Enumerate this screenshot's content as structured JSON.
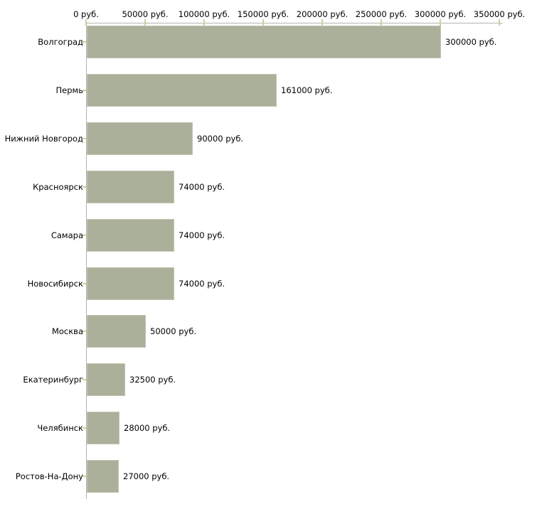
{
  "chart_data": {
    "type": "bar",
    "orientation": "horizontal",
    "title": "",
    "xlabel": "",
    "ylabel": "",
    "unit": "руб.",
    "xlim": [
      0,
      350000
    ],
    "grid": false,
    "legend": false,
    "categories": [
      "Волгоград",
      "Пермь",
      "Нижний Новгород",
      "Красноярск",
      "Самара",
      "Новосибирск",
      "Москва",
      "Екатеринбург",
      "Челябинск",
      "Ростов-На-Дону"
    ],
    "values": [
      300000,
      161000,
      90000,
      74000,
      74000,
      74000,
      50000,
      32500,
      28000,
      27000
    ],
    "value_labels": [
      "300000 руб.",
      "161000 руб.",
      "90000 руб.",
      "74000 руб.",
      "74000 руб.",
      "74000 руб.",
      "50000 руб.",
      "32500 руб.",
      "28000 руб.",
      "27000 руб."
    ],
    "x_ticks": [
      0,
      50000,
      100000,
      150000,
      200000,
      250000,
      300000,
      350000
    ],
    "x_tick_labels": [
      "0 руб.",
      "50000 руб.",
      "100000 руб.",
      "150000 руб.",
      "200000 руб.",
      "250000 руб.",
      "300000 руб.",
      "350000 руб."
    ],
    "colors": {
      "bar_fill": "#aab099",
      "bar_border": "#c2c5b1",
      "axis_line": "#b3b3b3",
      "tick_mark": "#cdcfa0",
      "text": "#000000",
      "background": "#ffffff"
    }
  }
}
